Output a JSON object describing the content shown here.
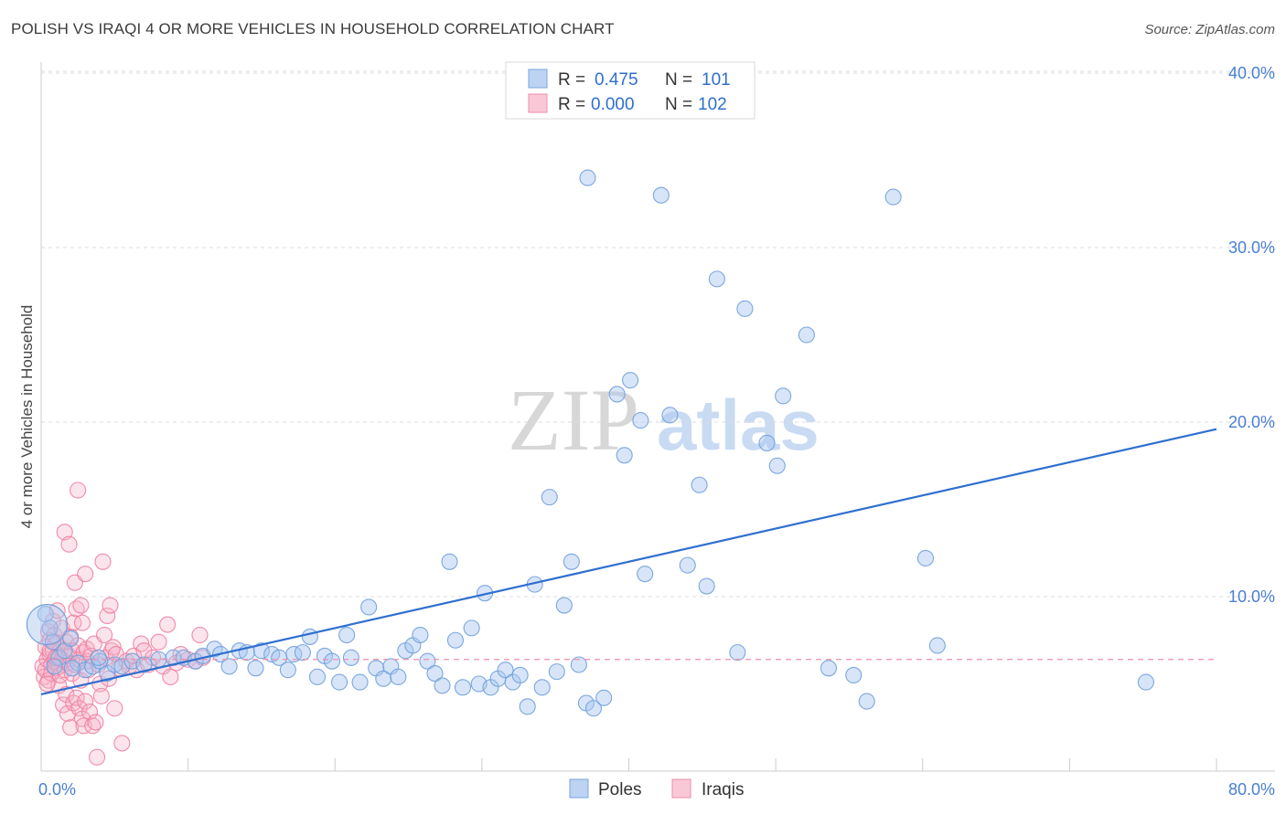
{
  "title": "POLISH VS IRAQI 4 OR MORE VEHICLES IN HOUSEHOLD CORRELATION CHART",
  "source": "Source: ZipAtlas.com",
  "watermark": {
    "zip": "ZIP",
    "atlas": "atlas"
  },
  "colors": {
    "poles_fill": "#a8c6ef",
    "poles_stroke": "#6f9fdc",
    "poles_line": "#2f6fd0",
    "iraqis_fill": "#f7b3c8",
    "iraqis_stroke": "#ee7fa0",
    "iraqis_line": "#ef8fab",
    "tick_color": "#4a7fd1",
    "grid": "#dddddd"
  },
  "legend": {
    "rows": [
      {
        "r_label": "R =",
        "r_value": "0.475",
        "n_label": "N =",
        "n_value": "101"
      },
      {
        "r_label": "R =",
        "r_value": "0.000",
        "n_label": "N =",
        "n_value": "102"
      }
    ]
  },
  "bottom_legend": [
    "Poles",
    "Iraqis"
  ],
  "chart_data": {
    "type": "scatter",
    "title": "POLISH VS IRAQI 4 OR MORE VEHICLES IN HOUSEHOLD CORRELATION CHART",
    "xlabel": "",
    "ylabel": "4 or more Vehicles in Household",
    "xlim": [
      0,
      80
    ],
    "ylim": [
      0,
      40
    ],
    "x_tick_labels": [
      "0.0%",
      "80.0%"
    ],
    "y_ticks": [
      10,
      20,
      30,
      40
    ],
    "y_tick_labels": [
      "10.0%",
      "20.0%",
      "30.0%",
      "40.0%"
    ],
    "series": [
      {
        "name": "Poles",
        "r": 0.475,
        "n": 101,
        "trend": {
          "x": [
            0,
            80
          ],
          "y": [
            4.4,
            19.6
          ]
        },
        "points": [
          [
            0.3,
            9.0
          ],
          [
            0.6,
            8.2
          ],
          [
            0.8,
            7.4
          ],
          [
            1.2,
            6.5
          ],
          [
            1.6,
            6.9
          ],
          [
            2.0,
            7.6
          ],
          [
            2.5,
            6.2
          ],
          [
            3.0,
            5.8
          ],
          [
            3.5,
            6.0
          ],
          [
            4.0,
            6.3
          ],
          [
            4.5,
            5.6
          ],
          [
            5.0,
            6.1
          ],
          [
            5.5,
            6.0
          ],
          [
            6.2,
            6.3
          ],
          [
            7.0,
            6.1
          ],
          [
            8.0,
            6.4
          ],
          [
            9.0,
            6.5
          ],
          [
            9.7,
            6.5
          ],
          [
            10.5,
            6.3
          ],
          [
            11.0,
            6.6
          ],
          [
            11.8,
            7.0
          ],
          [
            12.2,
            6.7
          ],
          [
            12.8,
            6.0
          ],
          [
            13.5,
            6.9
          ],
          [
            14.0,
            6.8
          ],
          [
            14.6,
            5.9
          ],
          [
            15.0,
            6.9
          ],
          [
            15.7,
            6.7
          ],
          [
            16.2,
            6.5
          ],
          [
            16.8,
            5.8
          ],
          [
            17.2,
            6.7
          ],
          [
            17.8,
            6.8
          ],
          [
            18.3,
            7.7
          ],
          [
            18.8,
            5.4
          ],
          [
            19.3,
            6.6
          ],
          [
            19.8,
            6.3
          ],
          [
            20.3,
            5.1
          ],
          [
            20.8,
            7.8
          ],
          [
            21.1,
            6.5
          ],
          [
            21.7,
            5.1
          ],
          [
            22.3,
            9.4
          ],
          [
            22.8,
            5.9
          ],
          [
            23.3,
            5.3
          ],
          [
            23.8,
            6.0
          ],
          [
            24.3,
            5.4
          ],
          [
            24.8,
            6.9
          ],
          [
            25.3,
            7.2
          ],
          [
            25.8,
            7.8
          ],
          [
            26.3,
            6.3
          ],
          [
            26.8,
            5.6
          ],
          [
            27.3,
            4.9
          ],
          [
            27.8,
            12.0
          ],
          [
            28.2,
            7.5
          ],
          [
            28.7,
            4.8
          ],
          [
            29.3,
            8.2
          ],
          [
            29.8,
            5.0
          ],
          [
            30.2,
            10.2
          ],
          [
            30.6,
            4.8
          ],
          [
            31.1,
            5.3
          ],
          [
            31.6,
            5.8
          ],
          [
            32.1,
            5.1
          ],
          [
            32.6,
            5.5
          ],
          [
            33.1,
            3.7
          ],
          [
            33.6,
            10.7
          ],
          [
            34.1,
            4.8
          ],
          [
            34.6,
            15.7
          ],
          [
            35.1,
            5.7
          ],
          [
            35.6,
            9.5
          ],
          [
            36.1,
            12.0
          ],
          [
            36.6,
            6.1
          ],
          [
            37.1,
            3.9
          ],
          [
            37.2,
            34.0
          ],
          [
            37.6,
            3.6
          ],
          [
            38.3,
            4.2
          ],
          [
            39.2,
            21.6
          ],
          [
            39.7,
            18.1
          ],
          [
            40.1,
            22.4
          ],
          [
            40.8,
            20.1
          ],
          [
            41.1,
            11.3
          ],
          [
            42.2,
            33.0
          ],
          [
            42.8,
            20.4
          ],
          [
            44.0,
            11.8
          ],
          [
            44.8,
            16.4
          ],
          [
            45.3,
            10.6
          ],
          [
            46.0,
            28.2
          ],
          [
            47.4,
            6.8
          ],
          [
            47.9,
            26.5
          ],
          [
            49.4,
            18.8
          ],
          [
            50.1,
            17.5
          ],
          [
            50.5,
            21.5
          ],
          [
            52.1,
            25.0
          ],
          [
            53.6,
            5.9
          ],
          [
            55.3,
            5.5
          ],
          [
            56.2,
            4.0
          ],
          [
            58.0,
            32.9
          ],
          [
            60.2,
            12.2
          ],
          [
            61.0,
            7.2
          ],
          [
            75.2,
            5.1
          ],
          [
            0.9,
            6.0
          ],
          [
            2.1,
            5.9
          ],
          [
            3.9,
            6.5
          ]
        ]
      },
      {
        "name": "Iraqis",
        "r": 0.0,
        "n": 102,
        "trend": {
          "x": [
            0,
            80
          ],
          "y": [
            6.4,
            6.4
          ]
        },
        "points": [
          [
            0.1,
            6.0
          ],
          [
            0.2,
            5.4
          ],
          [
            0.3,
            7.1
          ],
          [
            0.3,
            5.8
          ],
          [
            0.4,
            6.4
          ],
          [
            0.5,
            8.0
          ],
          [
            0.5,
            5.2
          ],
          [
            0.6,
            6.7
          ],
          [
            0.6,
            7.5
          ],
          [
            0.7,
            6.1
          ],
          [
            0.7,
            5.6
          ],
          [
            0.8,
            6.9
          ],
          [
            0.8,
            8.6
          ],
          [
            0.9,
            6.3
          ],
          [
            0.9,
            7.8
          ],
          [
            1.0,
            5.9
          ],
          [
            1.0,
            7.3
          ],
          [
            1.1,
            6.6
          ],
          [
            1.1,
            9.2
          ],
          [
            1.2,
            6.0
          ],
          [
            1.2,
            4.9
          ],
          [
            1.3,
            7.0
          ],
          [
            1.3,
            5.5
          ],
          [
            1.4,
            6.4
          ],
          [
            1.4,
            8.2
          ],
          [
            1.5,
            3.8
          ],
          [
            1.5,
            6.8
          ],
          [
            1.6,
            13.7
          ],
          [
            1.6,
            5.8
          ],
          [
            1.7,
            7.4
          ],
          [
            1.7,
            4.4
          ],
          [
            1.8,
            6.2
          ],
          [
            1.8,
            3.3
          ],
          [
            1.9,
            13.0
          ],
          [
            1.9,
            6.6
          ],
          [
            2.0,
            7.7
          ],
          [
            2.0,
            2.5
          ],
          [
            2.1,
            5.6
          ],
          [
            2.1,
            6.9
          ],
          [
            2.2,
            3.9
          ],
          [
            2.2,
            8.5
          ],
          [
            2.3,
            10.8
          ],
          [
            2.3,
            6.1
          ],
          [
            2.4,
            9.3
          ],
          [
            2.4,
            4.2
          ],
          [
            2.5,
            7.2
          ],
          [
            2.5,
            16.1
          ],
          [
            2.6,
            3.6
          ],
          [
            2.6,
            6.4
          ],
          [
            2.7,
            9.5
          ],
          [
            2.7,
            5.2
          ],
          [
            2.8,
            8.5
          ],
          [
            2.8,
            3.0
          ],
          [
            2.9,
            6.8
          ],
          [
            2.9,
            2.6
          ],
          [
            3.0,
            11.3
          ],
          [
            3.0,
            4.0
          ],
          [
            3.1,
            6.3
          ],
          [
            3.1,
            7.0
          ],
          [
            3.2,
            5.8
          ],
          [
            3.3,
            3.4
          ],
          [
            3.4,
            6.6
          ],
          [
            3.5,
            2.6
          ],
          [
            3.6,
            7.3
          ],
          [
            3.7,
            2.8
          ],
          [
            3.8,
            0.8
          ],
          [
            3.9,
            6.1
          ],
          [
            4.0,
            5.0
          ],
          [
            4.1,
            4.3
          ],
          [
            4.2,
            12.0
          ],
          [
            4.3,
            7.8
          ],
          [
            4.4,
            6.5
          ],
          [
            4.5,
            8.9
          ],
          [
            4.6,
            5.3
          ],
          [
            4.7,
            9.5
          ],
          [
            4.8,
            6.9
          ],
          [
            4.9,
            7.1
          ],
          [
            5.0,
            3.6
          ],
          [
            5.1,
            6.7
          ],
          [
            5.3,
            5.9
          ],
          [
            5.5,
            1.6
          ],
          [
            5.8,
            6.3
          ],
          [
            6.0,
            6.0
          ],
          [
            6.3,
            6.6
          ],
          [
            6.5,
            5.8
          ],
          [
            6.8,
            7.3
          ],
          [
            7.0,
            6.9
          ],
          [
            7.3,
            6.1
          ],
          [
            7.6,
            6.5
          ],
          [
            8.0,
            7.4
          ],
          [
            8.3,
            6.0
          ],
          [
            8.6,
            8.4
          ],
          [
            8.8,
            5.4
          ],
          [
            9.2,
            6.2
          ],
          [
            9.5,
            6.7
          ],
          [
            10.0,
            6.4
          ],
          [
            10.5,
            6.3
          ],
          [
            10.8,
            7.8
          ],
          [
            11.0,
            6.5
          ],
          [
            0.4,
            5.0
          ],
          [
            0.6,
            6.9
          ],
          [
            1.0,
            6.5
          ]
        ]
      }
    ]
  }
}
